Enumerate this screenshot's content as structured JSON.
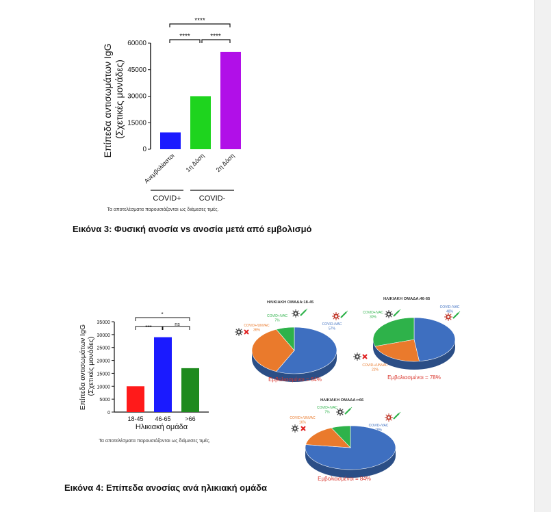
{
  "figure3": {
    "caption": "Εικόνα 3: Φυσική ανοσία vs ανοσία μετά από εμβολισμό",
    "note": "Τα αποτελέσματα παρουσιάζονται ως διάμεσες τιμές.",
    "groups": [
      "COVID+",
      "COVID-"
    ],
    "significance": [
      "****",
      "****",
      "****"
    ]
  },
  "figure4": {
    "caption": "Εικόνα 4: Επίπεδα ανοσίας ανά ηλικιακή ομάδα",
    "note": "Τα αποτελέσματα παρουσιάζονται ως διάμεσες τιμές.",
    "significance": [
      "***",
      "*",
      "ns"
    ]
  },
  "chart_data": [
    {
      "type": "bar",
      "ylabel": "Επίπεδα αντισωμάτων IgG (Σχετικές μονάδες)",
      "categories": [
        "Ανεμβολίαστοι",
        "1η Δόση",
        "2η Δόση"
      ],
      "values": [
        9500,
        30000,
        55000
      ],
      "colors": [
        "#1a1aff",
        "#1ed41e",
        "#b10fe8"
      ],
      "ylim": [
        0,
        60000
      ],
      "yticks": [
        0,
        15000,
        30000,
        45000,
        60000
      ]
    },
    {
      "type": "bar",
      "ylabel": "Επίπεδα αντισωμάτων IgG (Σχετικές μονάδες)",
      "xlabel": "Ηλικιακή ομάδα",
      "categories": [
        "18-45",
        "46-65",
        ">66"
      ],
      "values": [
        10000,
        29000,
        17000
      ],
      "colors": [
        "#ff1a1a",
        "#1a1aff",
        "#1e8a1e"
      ],
      "ylim": [
        0,
        35000
      ],
      "yticks": [
        0,
        5000,
        10000,
        15000,
        20000,
        25000,
        30000,
        35000
      ]
    },
    {
      "type": "pie",
      "title": "ΗΛΙΚΙΑΚΗ ΟΜΑΔΑ:18-45",
      "slices": [
        {
          "label": "COVID-/VAC",
          "value": 57,
          "color": "#3e6fc0",
          "text": "COVID-/VAC\n57%"
        },
        {
          "label": "COVID+/UNVAC",
          "value": 36,
          "color": "#ea7a2c",
          "text": "COVID+/UNVAC\n36%"
        },
        {
          "label": "COVID+/VAC",
          "value": 7,
          "color": "#2eb24a",
          "text": "COVID+/VAC\n7%"
        }
      ],
      "footer": "Εμβολιασμένοι = 64%"
    },
    {
      "type": "pie",
      "title": "ΗΛΙΚΙΑΚΗ ΟΜΑΔΑ:46-65",
      "slices": [
        {
          "label": "COVID-/VAC",
          "value": 48,
          "color": "#3e6fc0",
          "text": "COVID-/VAC\n48%"
        },
        {
          "label": "COVID+/UNVAC",
          "value": 22,
          "color": "#ea7a2c",
          "text": "COVID+/UNVAC\n22%"
        },
        {
          "label": "COVID+/VAC",
          "value": 30,
          "color": "#2eb24a",
          "text": "COVID+/VAC\n30%"
        }
      ],
      "footer": "Εμβολιασμένοι = 78%"
    },
    {
      "type": "pie",
      "title": "ΗΛΙΚΙΑΚΗ ΟΜΑΔΑ:>66",
      "slices": [
        {
          "label": "COVID-/VAC",
          "value": 78,
          "color": "#3e6fc0",
          "text": "COVID-/VAC\n78%"
        },
        {
          "label": "COVID+/UNVAC",
          "value": 16,
          "color": "#ea7a2c",
          "text": "COVID+/UNVAC\n16%"
        },
        {
          "label": "COVID+/VAC",
          "value": 7,
          "color": "#2eb24a",
          "text": "COVID+/VAC\n7%"
        }
      ],
      "footer": "Εμβολιασμένοι = 84%"
    }
  ]
}
